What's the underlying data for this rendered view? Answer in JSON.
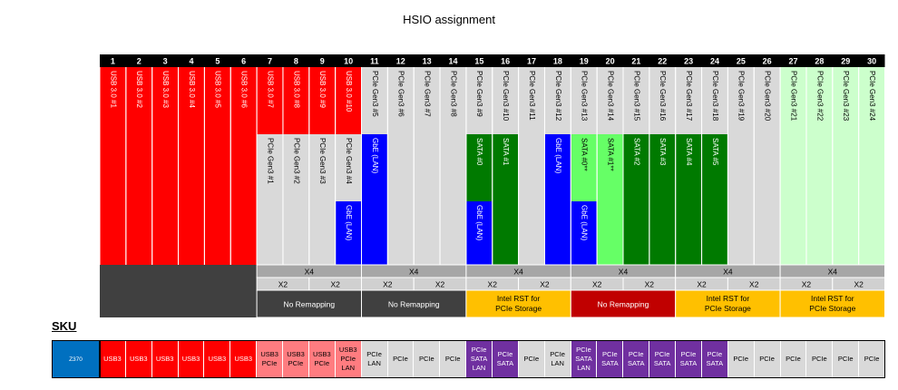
{
  "title": "HSIO assignment",
  "lanes": [
    "1",
    "2",
    "3",
    "4",
    "5",
    "6",
    "7",
    "8",
    "9",
    "10",
    "11",
    "12",
    "13",
    "14",
    "15",
    "16",
    "17",
    "18",
    "19",
    "20",
    "21",
    "22",
    "23",
    "24",
    "25",
    "26",
    "27",
    "28",
    "29",
    "30"
  ],
  "tiers": [
    [
      {
        "t": "USB 3.0 #1",
        "c": "red"
      }
    ],
    [
      {
        "t": "USB 3.0 #2",
        "c": "red"
      }
    ],
    [
      {
        "t": "USB 3.0 #3",
        "c": "red"
      }
    ],
    [
      {
        "t": "USB 3.0 #4",
        "c": "red"
      }
    ],
    [
      {
        "t": "USB 3.0 #5",
        "c": "red"
      }
    ],
    [
      {
        "t": "USB 3.0 #6",
        "c": "red"
      }
    ],
    [
      {
        "t": "USB 3.0 #7",
        "c": "red"
      },
      {
        "t": "PCIe Gen3 #1",
        "c": "grey"
      }
    ],
    [
      {
        "t": "USB 3.0 #8",
        "c": "red"
      },
      {
        "t": "PCIe Gen3 #2",
        "c": "grey"
      }
    ],
    [
      {
        "t": "USB 3.0 #9",
        "c": "red"
      },
      {
        "t": "PCIe Gen3 #3",
        "c": "grey"
      }
    ],
    [
      {
        "t": "USB 3.0 #10",
        "c": "red"
      },
      {
        "t": "PCIe Gen3 #4",
        "c": "grey"
      },
      {
        "t": "GbE (LAN)",
        "c": "blue"
      }
    ],
    [
      {
        "t": "PCIe Gen3 #5",
        "c": "grey"
      },
      {
        "t": "GbE (LAN)",
        "c": "blue"
      }
    ],
    [
      {
        "t": "PCIe Gen3 #6",
        "c": "grey"
      }
    ],
    [
      {
        "t": "PCIe Gen3 #7",
        "c": "grey"
      }
    ],
    [
      {
        "t": "PCIe Gen3 #8",
        "c": "grey"
      }
    ],
    [
      {
        "t": "PCIe Gen3 #9",
        "c": "grey"
      },
      {
        "t": "SATA #0",
        "c": "green"
      },
      {
        "t": "GbE (LAN)",
        "c": "blue"
      }
    ],
    [
      {
        "t": "PCIe Gen3 #10",
        "c": "grey"
      },
      {
        "t": "SATA #1",
        "c": "green"
      }
    ],
    [
      {
        "t": "PCIe Gen3 #11",
        "c": "grey"
      }
    ],
    [
      {
        "t": "PCIe Gen3 #12",
        "c": "grey"
      },
      {
        "t": "GbE (LAN)",
        "c": "blue"
      }
    ],
    [
      {
        "t": "PCIe Gen3 #13",
        "c": "grey"
      },
      {
        "t": "SATA #0**",
        "c": "ltgreen"
      },
      {
        "t": "GbE (LAN)",
        "c": "blue"
      }
    ],
    [
      {
        "t": "PCIe Gen3 #14",
        "c": "grey"
      },
      {
        "t": "SATA #1**",
        "c": "ltgreen"
      }
    ],
    [
      {
        "t": "PCIe Gen3 #15",
        "c": "grey"
      },
      {
        "t": "SATA #2",
        "c": "green"
      }
    ],
    [
      {
        "t": "PCIe Gen3 #16",
        "c": "grey"
      },
      {
        "t": "SATA #3",
        "c": "green"
      }
    ],
    [
      {
        "t": "PCIe Gen3 #17",
        "c": "grey"
      },
      {
        "t": "SATA #4",
        "c": "green"
      }
    ],
    [
      {
        "t": "PCIe Gen3 #18",
        "c": "grey"
      },
      {
        "t": "SATA #5",
        "c": "green"
      }
    ],
    [
      {
        "t": "PCIe Gen3 #19",
        "c": "grey"
      }
    ],
    [
      {
        "t": "PCIe Gen3 #20",
        "c": "grey"
      }
    ],
    [
      {
        "t": "PCIe Gen3 #21",
        "c": "pale"
      }
    ],
    [
      {
        "t": "PCIe Gen3 #22",
        "c": "pale"
      }
    ],
    [
      {
        "t": "PCIe Gen3 #23",
        "c": "pale"
      }
    ],
    [
      {
        "t": "PCIe Gen3 #24",
        "c": "pale"
      }
    ]
  ],
  "groups": [
    {
      "x4": "X4",
      "x2": [
        "X2",
        "X2"
      ],
      "remap": "No Remapping",
      "style": "dark"
    },
    {
      "x4": "X4",
      "x2": [
        "X2",
        "X2"
      ],
      "remap": "No Remapping",
      "style": "dark"
    },
    {
      "x4": "X4",
      "x2": [
        "X2",
        "X2"
      ],
      "remap": "Intel RST for PCIe Storage",
      "style": "orange"
    },
    {
      "x4": "X4",
      "x2": [
        "X2",
        "X2"
      ],
      "remap": "No Remapping",
      "style": "crimson"
    },
    {
      "x4": "X4",
      "x2": [
        "X2",
        "X2"
      ],
      "remap": "Intel RST for PCIe Storage",
      "style": "orange"
    },
    {
      "x4": "X4",
      "x2": [
        "X2",
        "X2"
      ],
      "remap": "Intel RST for PCIe Storage",
      "style": "orange"
    }
  ],
  "sku": {
    "label": "SKU",
    "name": "Z370",
    "cells": [
      {
        "lines": [
          "USB3"
        ],
        "c": "red"
      },
      {
        "lines": [
          "USB3"
        ],
        "c": "red"
      },
      {
        "lines": [
          "USB3"
        ],
        "c": "red"
      },
      {
        "lines": [
          "USB3"
        ],
        "c": "red"
      },
      {
        "lines": [
          "USB3"
        ],
        "c": "red"
      },
      {
        "lines": [
          "USB3"
        ],
        "c": "red"
      },
      {
        "lines": [
          "USB3",
          "PCIe"
        ],
        "c": "pink"
      },
      {
        "lines": [
          "USB3",
          "PCIe"
        ],
        "c": "pink"
      },
      {
        "lines": [
          "USB3",
          "PCIe"
        ],
        "c": "pink"
      },
      {
        "lines": [
          "USB3",
          "PCIe",
          "LAN"
        ],
        "c": "pink"
      },
      {
        "lines": [
          "PCIe",
          "LAN"
        ],
        "c": "grey"
      },
      {
        "lines": [
          "PCIe"
        ],
        "c": "grey"
      },
      {
        "lines": [
          "PCIe"
        ],
        "c": "grey"
      },
      {
        "lines": [
          "PCIe"
        ],
        "c": "grey"
      },
      {
        "lines": [
          "PCIe",
          "SATA",
          "LAN"
        ],
        "c": "purple"
      },
      {
        "lines": [
          "PCIe",
          "SATA"
        ],
        "c": "purple"
      },
      {
        "lines": [
          "PCIe"
        ],
        "c": "grey"
      },
      {
        "lines": [
          "PCIe",
          "LAN"
        ],
        "c": "grey"
      },
      {
        "lines": [
          "PCIe",
          "SATA",
          "LAN"
        ],
        "c": "purple"
      },
      {
        "lines": [
          "PCIe",
          "SATA"
        ],
        "c": "purple"
      },
      {
        "lines": [
          "PCIe",
          "SATA"
        ],
        "c": "purple"
      },
      {
        "lines": [
          "PCIe",
          "SATA"
        ],
        "c": "purple"
      },
      {
        "lines": [
          "PCIe",
          "SATA"
        ],
        "c": "purple"
      },
      {
        "lines": [
          "PCIe",
          "SATA"
        ],
        "c": "purple"
      },
      {
        "lines": [
          "PCIe"
        ],
        "c": "grey"
      },
      {
        "lines": [
          "PCIe"
        ],
        "c": "grey"
      },
      {
        "lines": [
          "PCIe"
        ],
        "c": "grey"
      },
      {
        "lines": [
          "PCIe"
        ],
        "c": "grey"
      },
      {
        "lines": [
          "PCIe"
        ],
        "c": "grey"
      },
      {
        "lines": [
          "PCIe"
        ],
        "c": "grey"
      }
    ]
  },
  "colors": {
    "red": "#ff0000",
    "grey": "#d9d9d9",
    "blue": "#0000ff",
    "green": "#007a00",
    "ltgreen": "#66ff66",
    "pale": "#ccffcc",
    "dark": "#404040",
    "orange": "#ffc000",
    "crimson": "#c00000",
    "pink": "#ff7c80",
    "purple": "#7030a0",
    "headerbar": "#000000",
    "gridgrey": "#a6a6a6"
  }
}
